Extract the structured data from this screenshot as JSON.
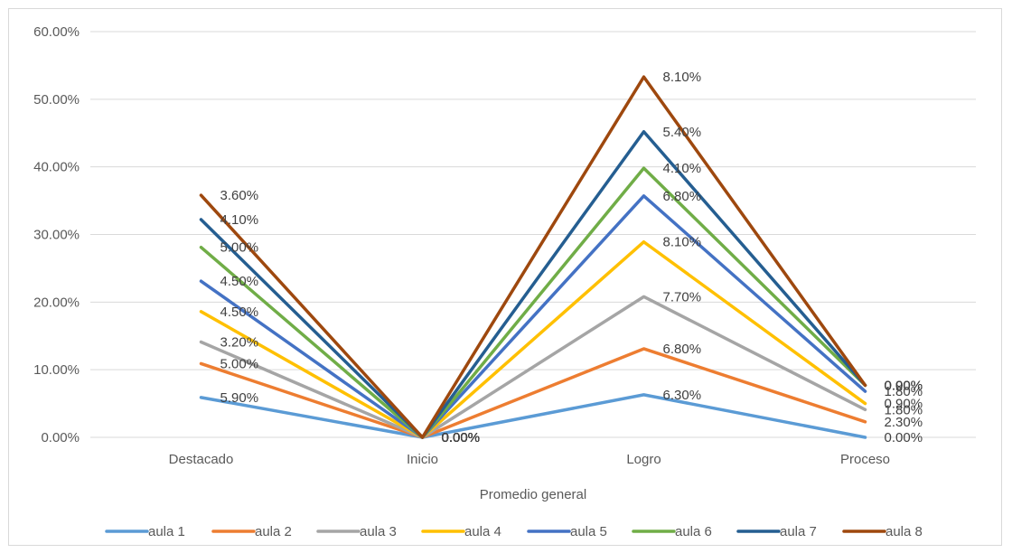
{
  "chart_data": {
    "type": "line",
    "stacked": true,
    "title": "",
    "xlabel": "Promedio general",
    "ylabel": "",
    "categories": [
      "Destacado",
      "Inicio",
      "Logro",
      "Proceso"
    ],
    "ylim": [
      0,
      60
    ],
    "yticks": [
      "0.00%",
      "10.00%",
      "20.00%",
      "30.00%",
      "40.00%",
      "50.00%",
      "60.00%"
    ],
    "grid": true,
    "legend_position": "bottom",
    "series": [
      {
        "name": "aula 1",
        "color": "#5b9bd5",
        "values": [
          5.9,
          0.0,
          6.3,
          0.0
        ],
        "labels": [
          "5.90%",
          "0.00%",
          "6.30%",
          "0.00%"
        ]
      },
      {
        "name": "aula 2",
        "color": "#ed7d31",
        "values": [
          5.0,
          0.0,
          6.8,
          2.3
        ],
        "labels": [
          "5.00%",
          "0.00%",
          "6.80%",
          "2.30%"
        ]
      },
      {
        "name": "aula 3",
        "color": "#a5a5a5",
        "values": [
          3.2,
          0.0,
          7.7,
          1.8
        ],
        "labels": [
          "3.20%",
          "0.00%",
          "7.70%",
          "1.80%"
        ]
      },
      {
        "name": "aula 4",
        "color": "#ffc000",
        "values": [
          4.5,
          0.0,
          8.1,
          0.9
        ],
        "labels": [
          "4.50%",
          "0.00%",
          "8.10%",
          "0.90%"
        ]
      },
      {
        "name": "aula 5",
        "color": "#4472c4",
        "values": [
          4.5,
          0.0,
          6.8,
          1.8
        ],
        "labels": [
          "4.50%",
          "0.00%",
          "6.80%",
          "1.80%"
        ]
      },
      {
        "name": "aula 6",
        "color": "#70ad47",
        "values": [
          5.0,
          0.0,
          4.1,
          0.9
        ],
        "labels": [
          "5.00%",
          "0.00%",
          "4.10%",
          "0.90%"
        ]
      },
      {
        "name": "aula 7",
        "color": "#255e91",
        "values": [
          4.1,
          0.0,
          5.4,
          0.0
        ],
        "labels": [
          "4.10%",
          "0.00%",
          "5.40%",
          "0.00%"
        ]
      },
      {
        "name": "aula 8",
        "color": "#9e480e",
        "values": [
          3.6,
          0.0,
          8.1,
          0.0
        ],
        "labels": [
          "3.60%",
          "0.00%",
          "8.10%",
          "0.00%"
        ]
      }
    ]
  }
}
